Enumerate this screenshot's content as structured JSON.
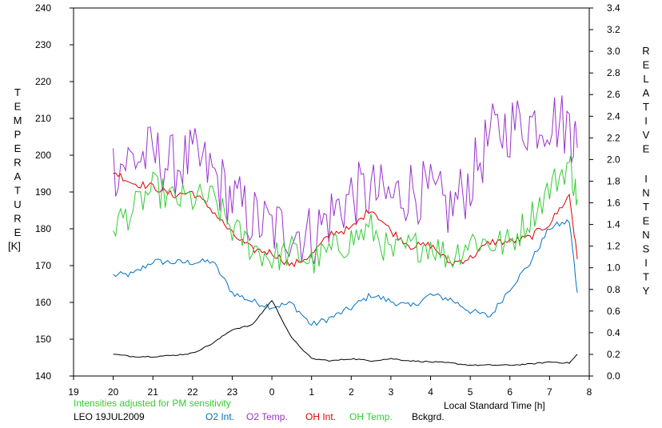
{
  "chart_data": {
    "type": "line",
    "left_axis_label": "TEMPERATURE",
    "left_axis_unit": "[K]",
    "right_axis_label": "RELATIVE INTENSITY",
    "x_axis_label": "Local Standard Time [h]",
    "left_ylim": [
      140,
      240
    ],
    "left_ticks": [
      "140",
      "150",
      "160",
      "170",
      "180",
      "190",
      "200",
      "210",
      "220",
      "230",
      "240"
    ],
    "right_ylim": [
      0.0,
      3.4
    ],
    "right_ticks": [
      "0.0",
      "0.2",
      "0.4",
      "0.6",
      "0.8",
      "1.0",
      "1.2",
      "1.4",
      "1.6",
      "1.8",
      "2.0",
      "2.2",
      "2.4",
      "2.6",
      "2.8",
      "3.0",
      "3.2",
      "3.4"
    ],
    "x_ticks": [
      "19",
      "20",
      "21",
      "22",
      "23",
      "0",
      "1",
      "2",
      "3",
      "4",
      "5",
      "6",
      "7",
      "8"
    ],
    "note": "Intensities adjusted for PM sensitivity",
    "station_date": "LEO 19JUL2009",
    "x_hours_after_19": [
      1.0,
      1.5,
      2.0,
      2.5,
      3.0,
      3.5,
      4.0,
      4.5,
      5.0,
      5.5,
      6.0,
      6.5,
      7.0,
      7.5,
      8.0,
      8.5,
      9.0,
      9.5,
      10.0,
      10.5,
      11.0,
      11.5,
      12.0,
      12.5,
      12.7
    ],
    "series": [
      {
        "name": "O2 Int.",
        "axis": "right",
        "color": "#0070c0",
        "values": [
          0.93,
          0.94,
          1.06,
          1.05,
          1.05,
          1.06,
          0.77,
          0.69,
          0.64,
          0.67,
          0.47,
          0.54,
          0.63,
          0.75,
          0.69,
          0.64,
          0.75,
          0.71,
          0.6,
          0.55,
          0.81,
          1.04,
          1.37,
          1.43,
          0.77
        ]
      },
      {
        "name": "O2 Temp.",
        "axis": "left",
        "color": "#9933cc",
        "values": [
          197,
          199,
          200,
          197,
          199,
          195,
          188,
          183,
          180,
          180,
          178,
          184,
          189,
          190,
          188,
          191,
          189,
          185,
          193,
          205,
          208,
          209,
          210,
          208,
          202
        ]
      },
      {
        "name": "OH Int.",
        "axis": "right",
        "color": "#dd0000",
        "values": [
          1.89,
          1.78,
          1.75,
          1.67,
          1.7,
          1.53,
          1.31,
          1.17,
          1.14,
          1.02,
          1.12,
          1.32,
          1.36,
          1.55,
          1.34,
          1.2,
          1.21,
          1.04,
          1.09,
          1.24,
          1.24,
          1.28,
          1.41,
          1.67,
          1.08
        ]
      },
      {
        "name": "OH Temp.",
        "axis": "left",
        "color": "#33cc33",
        "values": [
          181,
          185,
          191,
          188,
          188,
          188,
          180,
          175,
          172,
          174,
          171,
          174,
          177,
          180,
          173,
          175,
          176,
          172,
          177,
          176,
          176,
          183,
          191,
          198,
          188
        ]
      },
      {
        "name": "Bckgrd.",
        "axis": "right",
        "color": "#000000",
        "values": [
          0.2,
          0.18,
          0.18,
          0.19,
          0.21,
          0.3,
          0.43,
          0.47,
          0.7,
          0.35,
          0.16,
          0.14,
          0.16,
          0.14,
          0.16,
          0.14,
          0.13,
          0.12,
          0.1,
          0.1,
          0.1,
          0.11,
          0.13,
          0.12,
          0.2
        ]
      }
    ]
  }
}
